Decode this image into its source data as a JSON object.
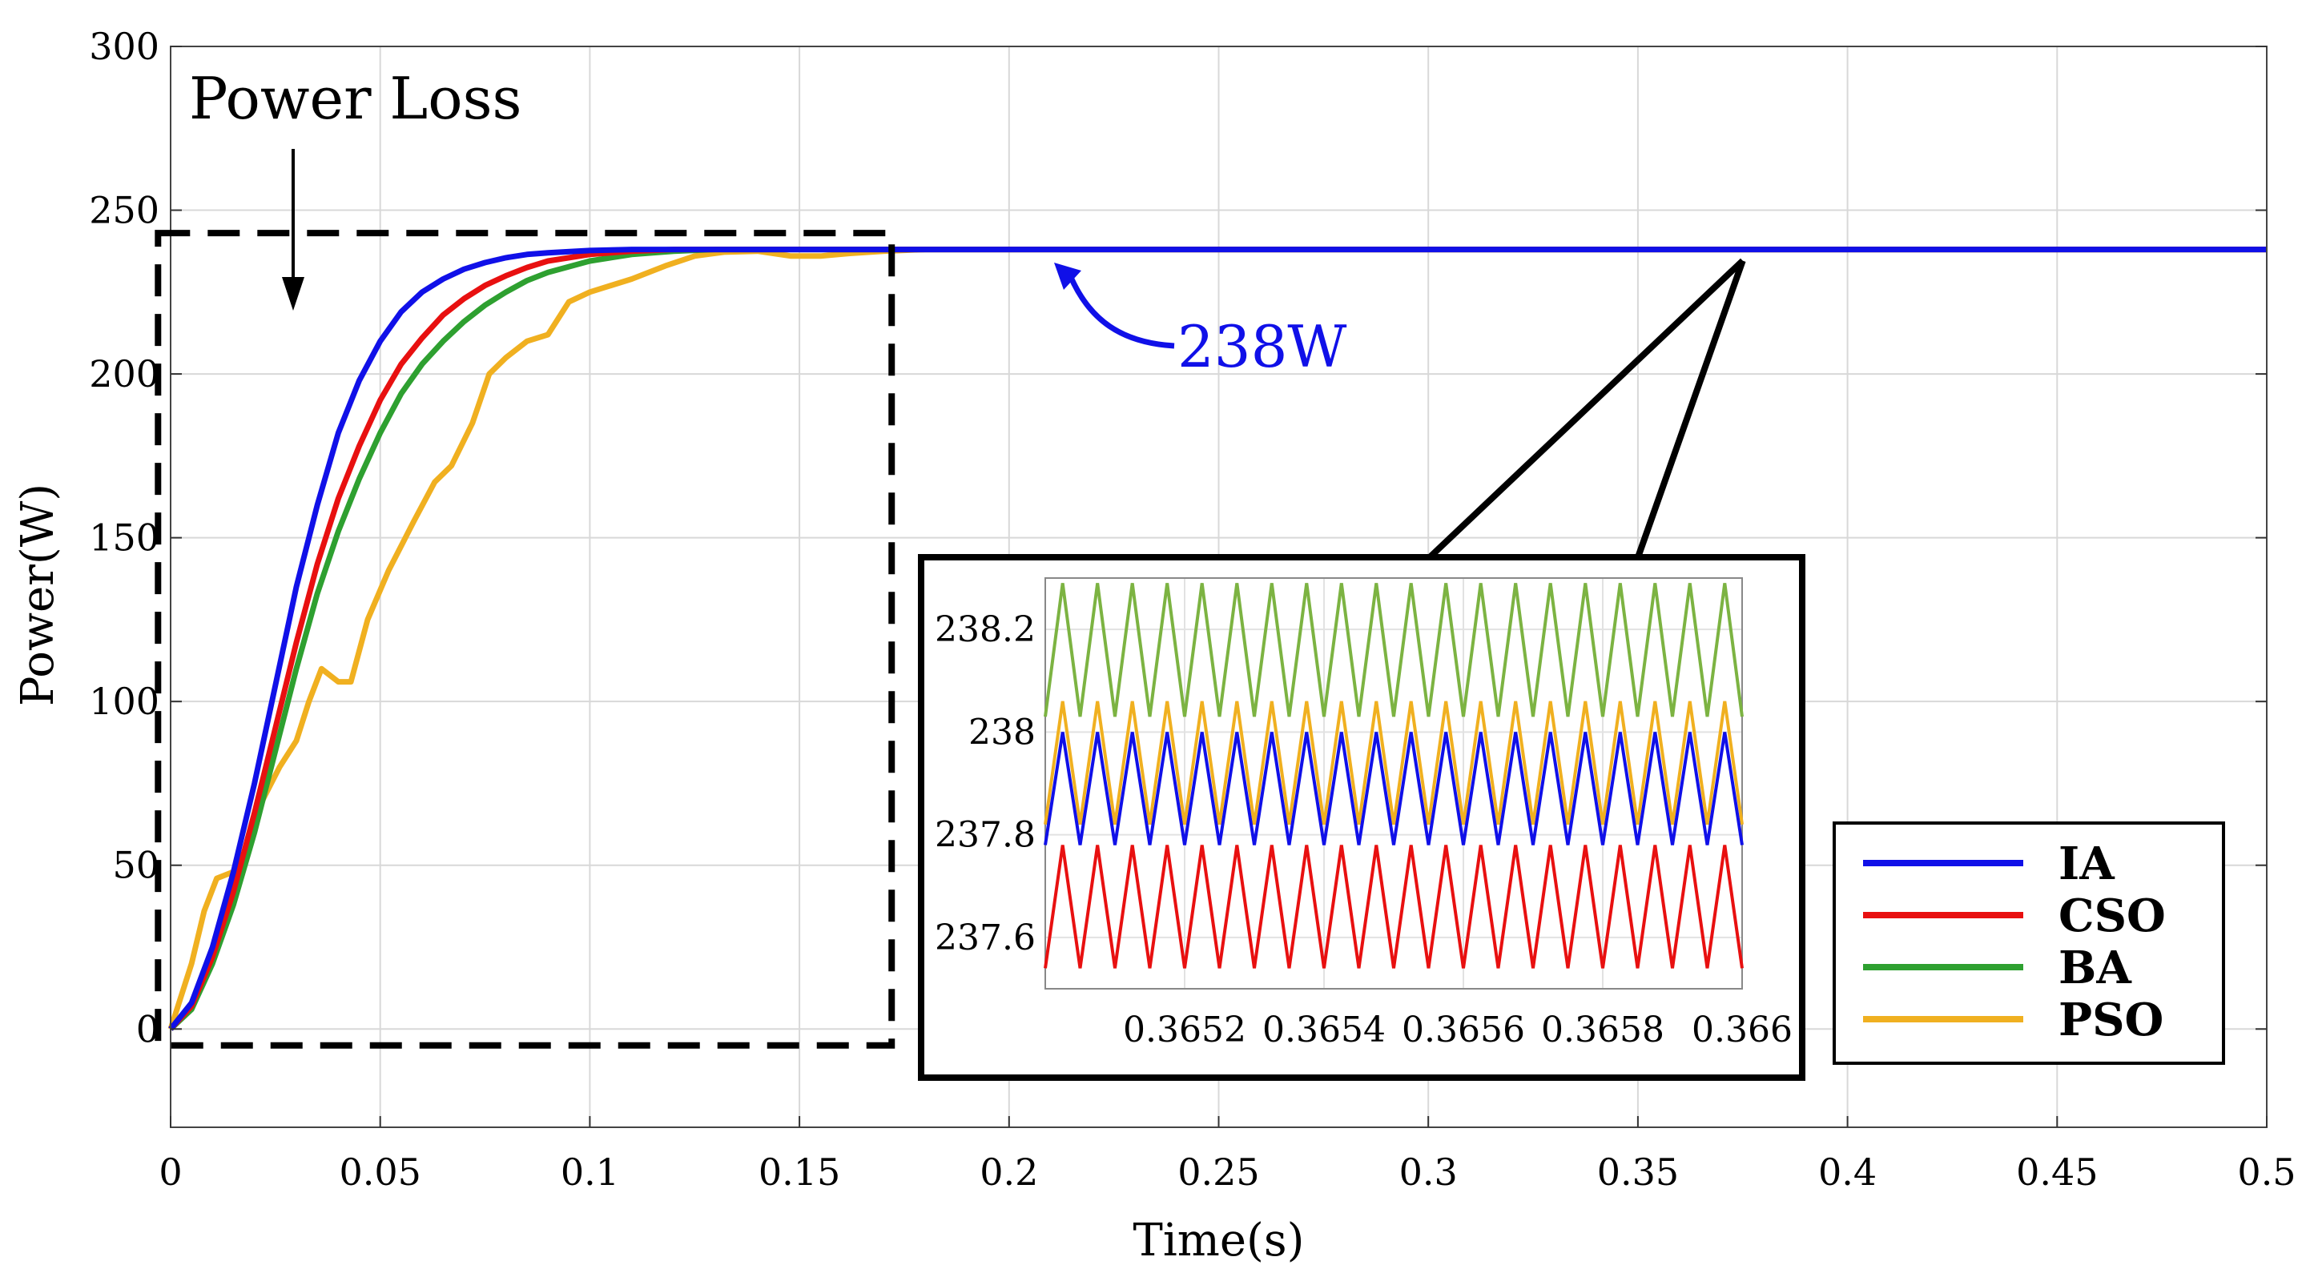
{
  "chart_data": {
    "type": "line",
    "title": "",
    "xlabel": "Time(s)",
    "ylabel": "Power(W)",
    "xlim": [
      0,
      0.5
    ],
    "ylim": [
      -30,
      300
    ],
    "grid": true,
    "x_ticks": [
      {
        "value": 0,
        "label": "0"
      },
      {
        "value": 0.05,
        "label": "0.05"
      },
      {
        "value": 0.1,
        "label": "0.1"
      },
      {
        "value": 0.15,
        "label": "0.15"
      },
      {
        "value": 0.2,
        "label": "0.2"
      },
      {
        "value": 0.25,
        "label": "0.25"
      },
      {
        "value": 0.3,
        "label": "0.3"
      },
      {
        "value": 0.35,
        "label": "0.35"
      },
      {
        "value": 0.4,
        "label": "0.4"
      },
      {
        "value": 0.45,
        "label": "0.45"
      },
      {
        "value": 0.5,
        "label": "0.5"
      }
    ],
    "y_ticks": [
      {
        "value": 0,
        "label": "0"
      },
      {
        "value": 50,
        "label": "50"
      },
      {
        "value": 100,
        "label": "100"
      },
      {
        "value": 150,
        "label": "150"
      },
      {
        "value": 200,
        "label": "200"
      },
      {
        "value": 250,
        "label": "250"
      },
      {
        "value": 300,
        "label": "300"
      }
    ],
    "series": [
      {
        "name": "IA",
        "color": "#1010e8",
        "x": [
          0,
          0.005,
          0.01,
          0.015,
          0.02,
          0.025,
          0.03,
          0.035,
          0.04,
          0.045,
          0.05,
          0.055,
          0.06,
          0.065,
          0.07,
          0.075,
          0.08,
          0.085,
          0.09,
          0.1,
          0.11,
          0.12,
          0.13,
          0.15,
          0.2,
          0.3,
          0.4,
          0.5
        ],
        "y": [
          0,
          8,
          25,
          48,
          75,
          105,
          135,
          160,
          182,
          198,
          210,
          219,
          225,
          229,
          232,
          234,
          235.5,
          236.5,
          237,
          237.7,
          238,
          238,
          238,
          238,
          238,
          238,
          238,
          238
        ]
      },
      {
        "name": "CSO",
        "color": "#e81010",
        "x": [
          0,
          0.005,
          0.01,
          0.015,
          0.02,
          0.025,
          0.03,
          0.035,
          0.04,
          0.045,
          0.05,
          0.055,
          0.06,
          0.065,
          0.07,
          0.075,
          0.08,
          0.085,
          0.09,
          0.1,
          0.11,
          0.12,
          0.13,
          0.14,
          0.15,
          0.2,
          0.3,
          0.4,
          0.5
        ],
        "y": [
          0,
          7,
          22,
          42,
          66,
          92,
          118,
          142,
          162,
          178,
          192,
          203,
          211,
          218,
          223,
          227,
          230,
          232.5,
          234.5,
          236.5,
          237.5,
          238,
          238,
          238,
          238,
          238,
          238,
          238,
          238
        ]
      },
      {
        "name": "BA",
        "color": "#2ea030",
        "x": [
          0,
          0.005,
          0.01,
          0.015,
          0.02,
          0.025,
          0.03,
          0.035,
          0.04,
          0.045,
          0.05,
          0.055,
          0.06,
          0.065,
          0.07,
          0.075,
          0.08,
          0.085,
          0.09,
          0.1,
          0.11,
          0.12,
          0.13,
          0.14,
          0.15,
          0.2,
          0.3,
          0.4,
          0.5
        ],
        "y": [
          0,
          6,
          20,
          38,
          60,
          85,
          110,
          133,
          152,
          168,
          182,
          194,
          203,
          210,
          216,
          221,
          225,
          228.5,
          231,
          234.5,
          236.5,
          237.5,
          238,
          238,
          238,
          238,
          238,
          238,
          238
        ]
      },
      {
        "name": "PSO",
        "color": "#f0b020",
        "x": [
          0,
          0.005,
          0.008,
          0.011,
          0.015,
          0.018,
          0.022,
          0.026,
          0.03,
          0.033,
          0.036,
          0.04,
          0.043,
          0.047,
          0.052,
          0.058,
          0.063,
          0.067,
          0.072,
          0.076,
          0.08,
          0.085,
          0.09,
          0.095,
          0.1,
          0.105,
          0.11,
          0.118,
          0.125,
          0.132,
          0.14,
          0.148,
          0.155,
          0.162,
          0.17,
          0.18,
          0.2,
          0.3,
          0.4,
          0.5
        ],
        "y": [
          0,
          20,
          36,
          46,
          48,
          55,
          70,
          80,
          88,
          100,
          110,
          106,
          106,
          125,
          140,
          155,
          167,
          172,
          185,
          200,
          205,
          210,
          212,
          222,
          225,
          227,
          229,
          233,
          236,
          237.2,
          237.5,
          236,
          236,
          236.8,
          237.5,
          238,
          238,
          238,
          238,
          238
        ]
      }
    ],
    "inset": {
      "xlim": [
        0.365,
        0.366
      ],
      "ylim": [
        237.5,
        238.3
      ],
      "x_ticks": [
        {
          "value": 0.3652,
          "label": "0.3652"
        },
        {
          "value": 0.3654,
          "label": "0.3654"
        },
        {
          "value": 0.3656,
          "label": "0.3656"
        },
        {
          "value": 0.3658,
          "label": "0.3658"
        },
        {
          "value": 0.366,
          "label": "0.366"
        }
      ],
      "y_ticks": [
        {
          "value": 237.6,
          "label": "237.6"
        },
        {
          "value": 237.8,
          "label": "237.8"
        },
        {
          "value": 238,
          "label": "238"
        },
        {
          "value": 238.2,
          "label": "238.2"
        }
      ],
      "oscillations": [
        {
          "name": "BA",
          "color": "#7cb342",
          "min": 238.03,
          "max": 238.29,
          "cycles": 20
        },
        {
          "name": "PSO",
          "color": "#f0b020",
          "min": 237.82,
          "max": 238.06,
          "cycles": 20
        },
        {
          "name": "IA",
          "color": "#1010e8",
          "min": 237.78,
          "max": 238.0,
          "cycles": 20
        },
        {
          "name": "CSO",
          "color": "#e81010",
          "min": 237.54,
          "max": 237.78,
          "cycles": 20
        }
      ]
    },
    "annotations": {
      "power_loss": "Power Loss",
      "steady_value": "238W",
      "steady_color": "#1010e8"
    }
  }
}
